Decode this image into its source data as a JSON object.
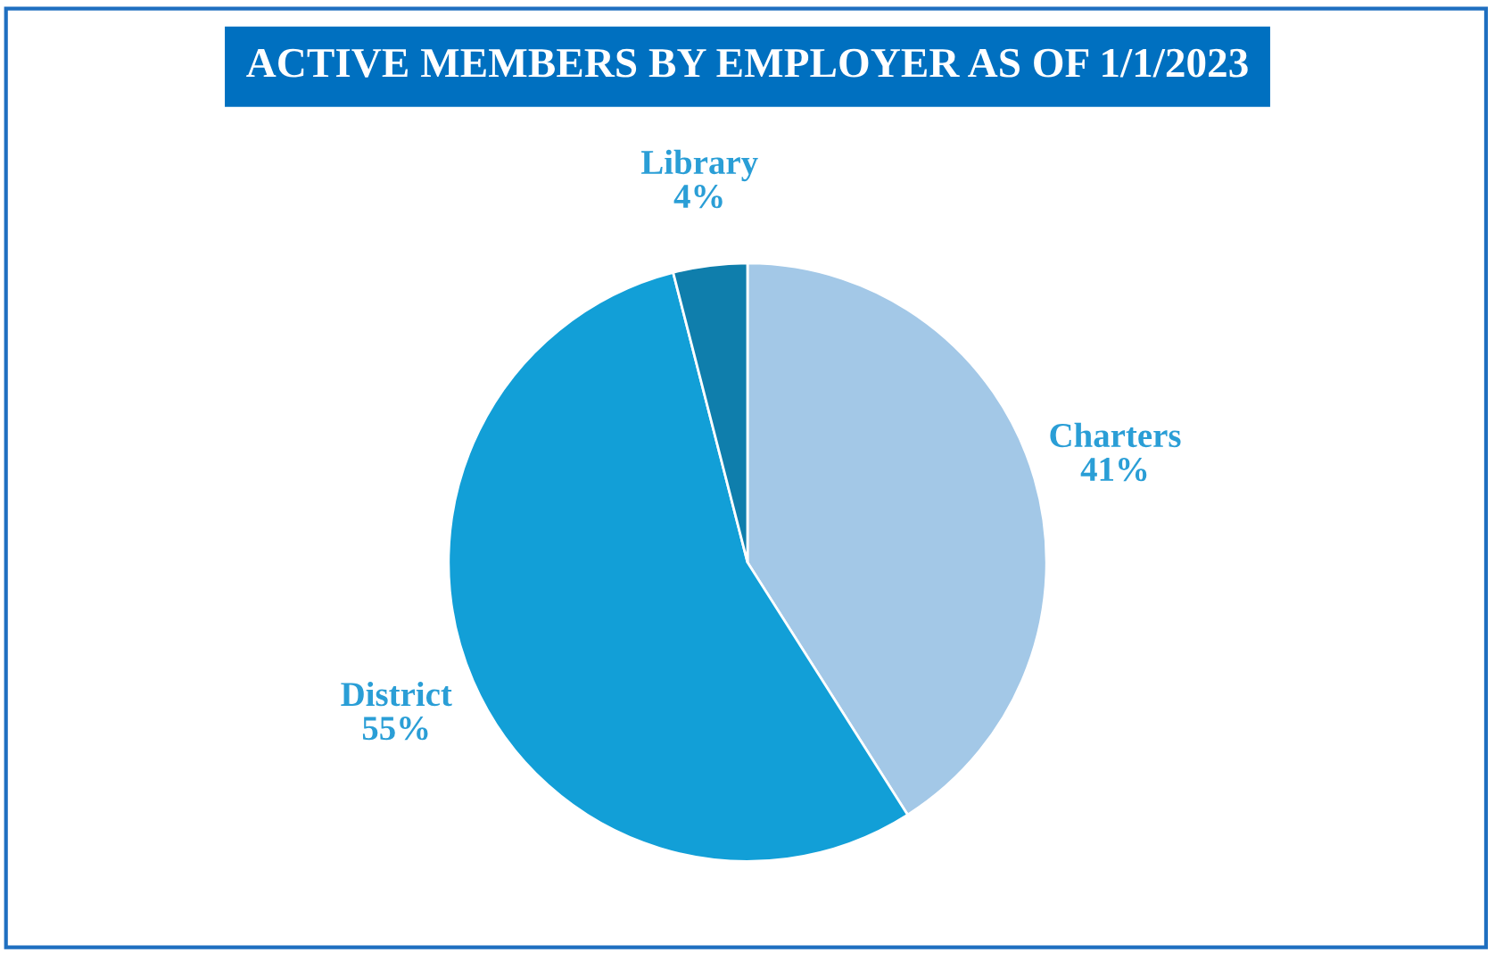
{
  "chart_data": {
    "type": "pie",
    "title": "ACTIVE MEMBERS BY EMPLOYER AS OF 1/1/2023",
    "categories": [
      "Charters",
      "District",
      "Library"
    ],
    "values": [
      41,
      55,
      4
    ],
    "colors": [
      "#a3c8e7",
      "#129fd7",
      "#0f7eac"
    ],
    "value_labels": [
      "41%",
      "55%",
      "4%"
    ],
    "legend": false
  }
}
